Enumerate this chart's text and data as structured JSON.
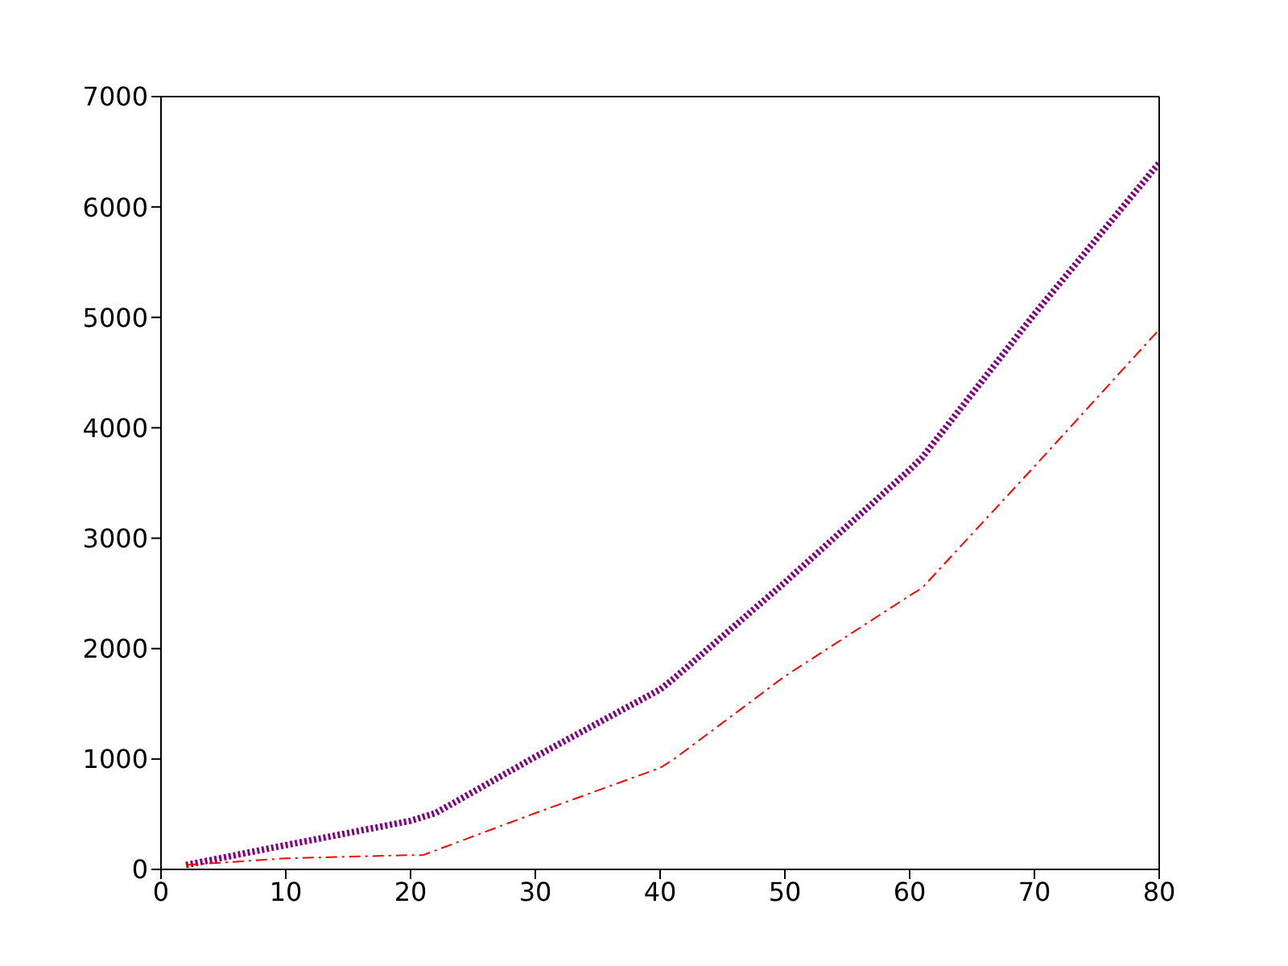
{
  "chart_data": {
    "type": "line",
    "xlim": [
      0,
      80
    ],
    "xticks": [
      0,
      10,
      20,
      30,
      40,
      50,
      60,
      70,
      80
    ],
    "ylim": [
      0,
      7000
    ],
    "yticks": [
      0,
      1000,
      2000,
      3000,
      4000,
      5000,
      6000,
      7000
    ],
    "marker": "none",
    "series": [
      {
        "color": "#800080",
        "line_style": "dotted",
        "x": [
          2,
          10,
          20,
          22,
          30,
          40,
          41,
          50,
          60,
          61,
          70,
          80
        ],
        "values": [
          40,
          220,
          440,
          510,
          1020,
          1630,
          1720,
          2600,
          3620,
          3730,
          5030,
          6400
        ]
      },
      {
        "color": "#ff0000",
        "line_style": "dashed",
        "x": [
          2,
          10,
          20,
          21,
          30,
          40,
          41,
          50,
          60,
          61,
          70,
          80
        ],
        "values": [
          40,
          100,
          130,
          130,
          510,
          920,
          990,
          1750,
          2480,
          2550,
          3650,
          4890
        ]
      }
    ]
  }
}
